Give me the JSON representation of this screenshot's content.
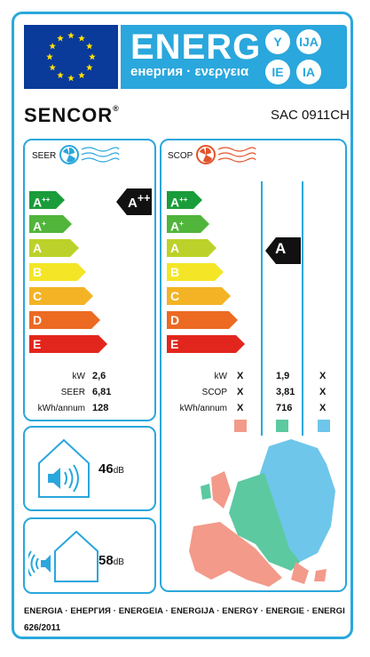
{
  "header": {
    "energy_title": "ENERG",
    "energy_subtitle": "енергия · ενεργεια",
    "lang_badges": [
      "Y",
      "IJA",
      "IE",
      "IA"
    ]
  },
  "brand": "SENCOR",
  "model": "SAC 0911CH",
  "classes": [
    "A++",
    "A+",
    "A",
    "B",
    "C",
    "D",
    "E"
  ],
  "seer": {
    "label": "SEER",
    "rating": "A++",
    "rows": [
      {
        "label": "kW",
        "value": "2,6"
      },
      {
        "label": "SEER",
        "value": "6,81"
      },
      {
        "label": "kWh/annum",
        "value": "128"
      }
    ]
  },
  "scop": {
    "label": "SCOP",
    "rating": "A",
    "rows": [
      {
        "label": "kW",
        "values": [
          "X",
          "1,9",
          "X"
        ]
      },
      {
        "label": "SCOP",
        "values": [
          "X",
          "3,81",
          "X"
        ]
      },
      {
        "label": "kWh/annum",
        "values": [
          "X",
          "716",
          "X"
        ]
      }
    ],
    "zone_colors": [
      "#f39a8a",
      "#5cc9a0",
      "#6ec6ea"
    ]
  },
  "noise": {
    "indoor_value": "46",
    "outdoor_value": "58",
    "unit": "dB"
  },
  "footer": {
    "languages": "ENERGIA · ЕНЕРГИЯ · ENERGEIA · ENERGIJA · ENERGY · ENERGIE · ENERGI",
    "regulation": "626/2011"
  },
  "colors": {
    "accent": "#2aa7dc",
    "eu_blue": "#0a3a9a",
    "class_colors": [
      "#1a9c3a",
      "#50b53a",
      "#bcd22a",
      "#f4e626",
      "#f3b325",
      "#ec6a22",
      "#e3261d"
    ]
  }
}
